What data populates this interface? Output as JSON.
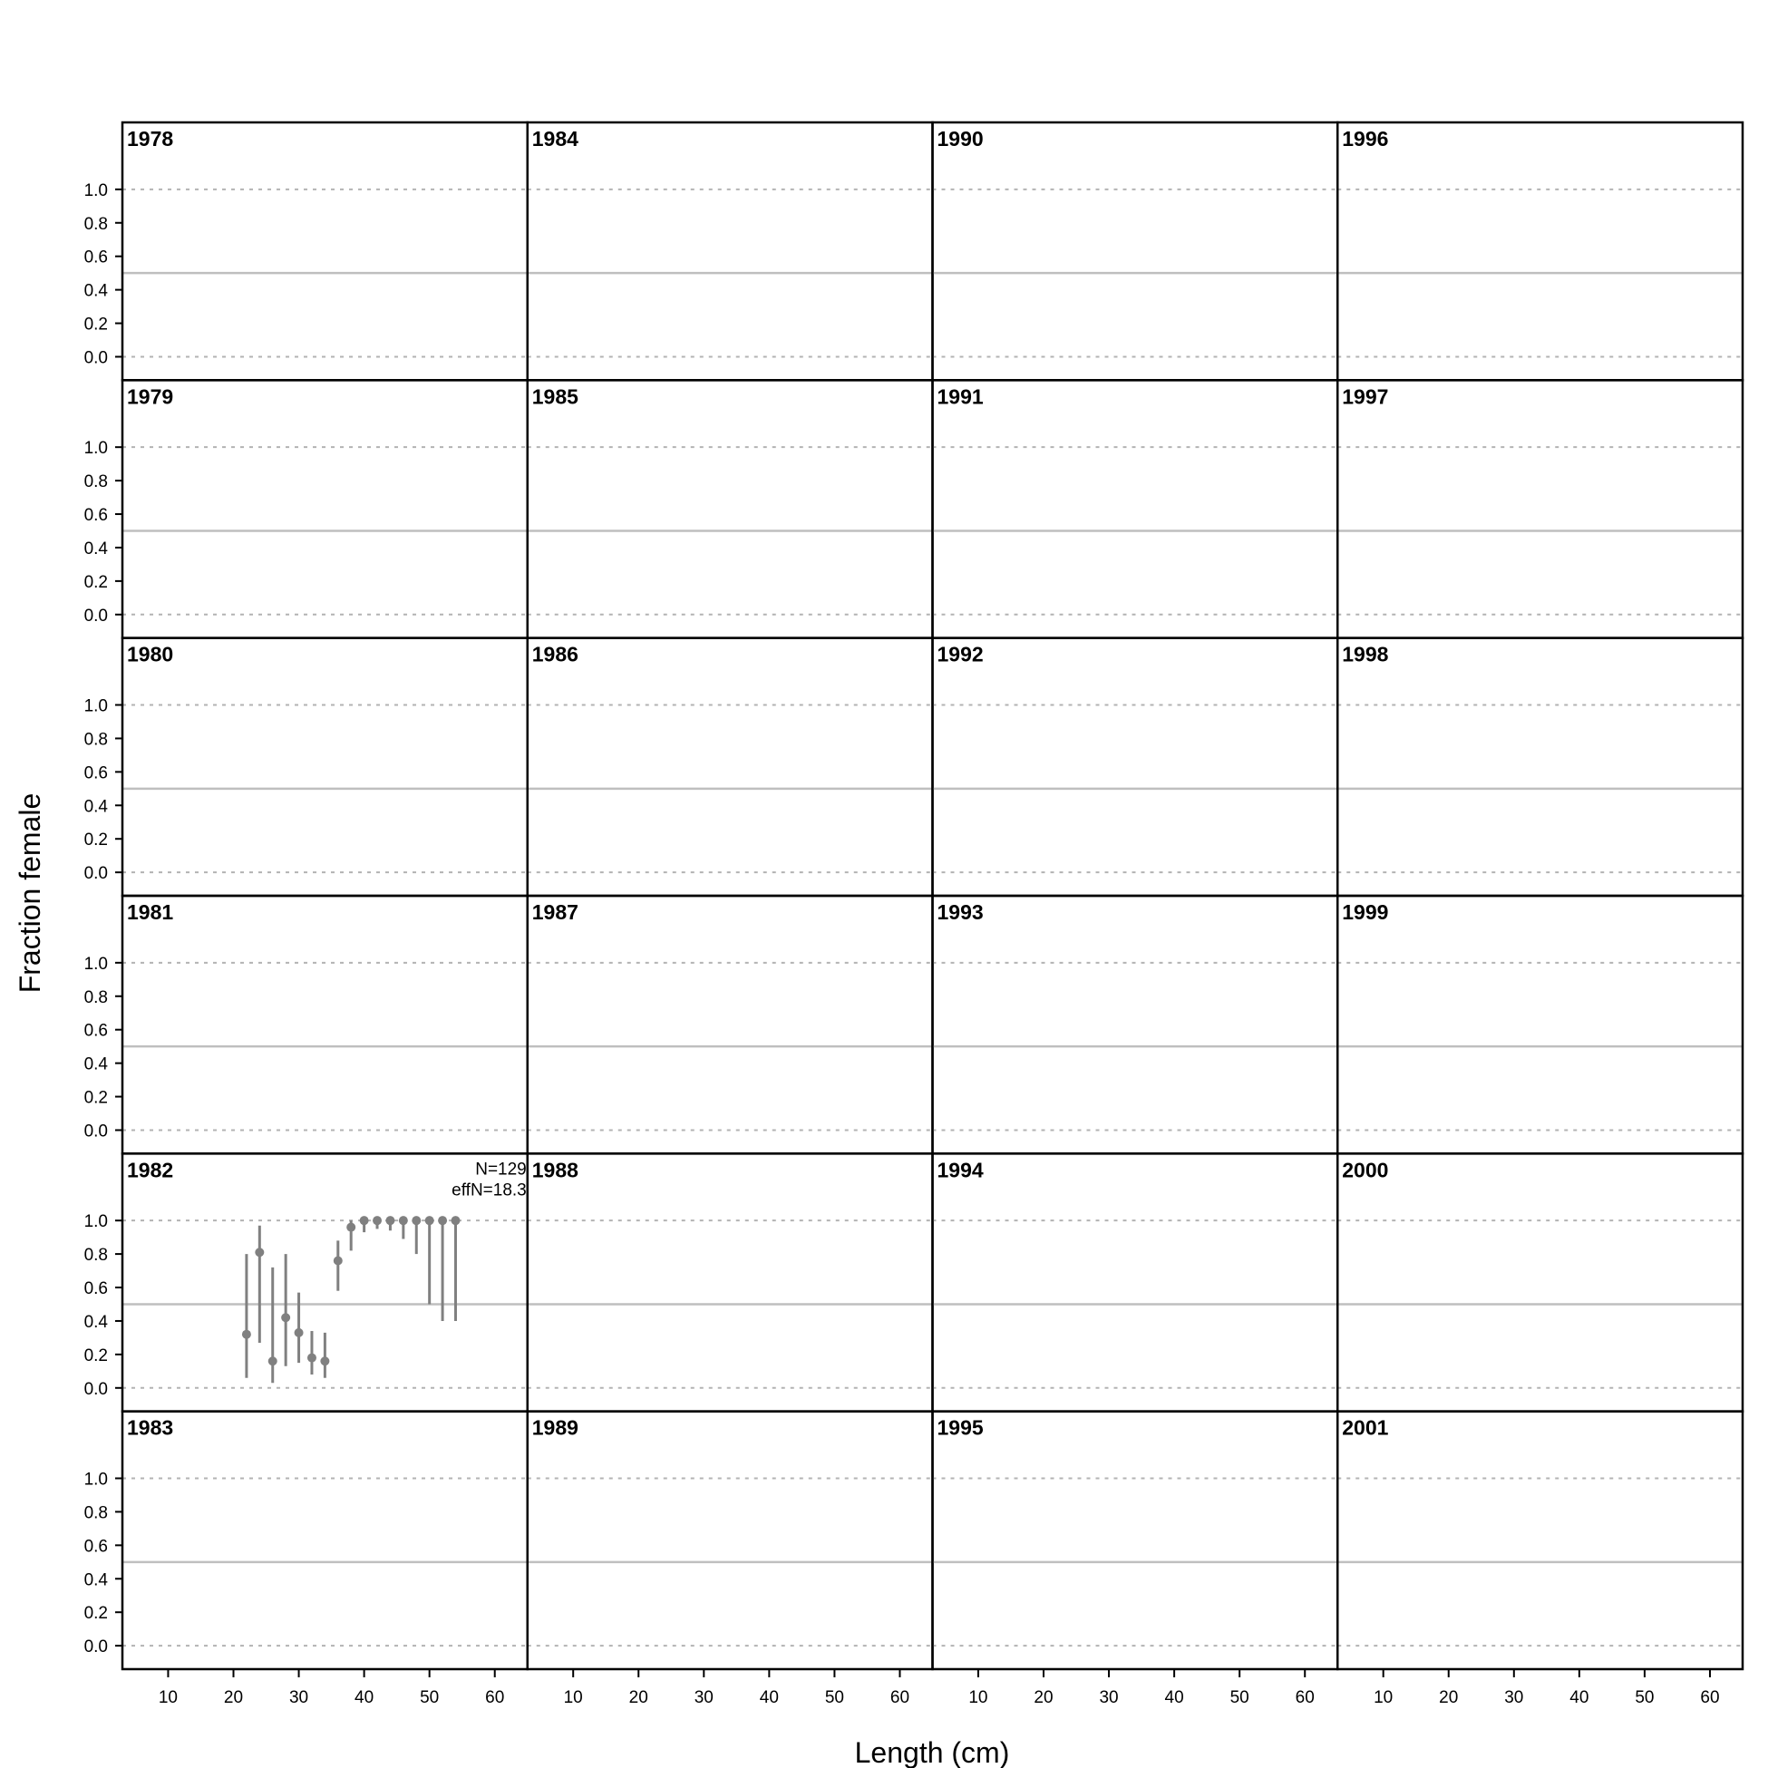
{
  "chart_data": {
    "type": "scatter",
    "xlabel": "Length (cm)",
    "ylabel": "Fraction female",
    "xlim": [
      3,
      65
    ],
    "ylim": [
      -0.14,
      1.4
    ],
    "x_ticks": [
      10,
      20,
      30,
      40,
      50,
      60
    ],
    "y_ticks": [
      0.0,
      0.2,
      0.4,
      0.6,
      0.8,
      1.0
    ],
    "y_tick_labels": [
      "0.0",
      "0.2",
      "0.4",
      "0.6",
      "0.8",
      "1.0"
    ],
    "reference_lines": {
      "dotted": [
        0,
        1
      ],
      "solid": 0.5
    },
    "point_color": "#808080",
    "layout": {
      "columns": 4,
      "rows": 6
    },
    "panels": [
      {
        "year": "1978",
        "points": []
      },
      {
        "year": "1979",
        "points": []
      },
      {
        "year": "1980",
        "points": []
      },
      {
        "year": "1981",
        "points": []
      },
      {
        "year": "1982",
        "N_label": "N=129",
        "effN_label": "effN=18.3",
        "points": [
          {
            "x": 22,
            "y": 0.32,
            "lo": 0.06,
            "hi": 0.8
          },
          {
            "x": 24,
            "y": 0.81,
            "lo": 0.27,
            "hi": 0.97
          },
          {
            "x": 26,
            "y": 0.16,
            "lo": 0.03,
            "hi": 0.72
          },
          {
            "x": 28,
            "y": 0.42,
            "lo": 0.13,
            "hi": 0.8
          },
          {
            "x": 30,
            "y": 0.33,
            "lo": 0.15,
            "hi": 0.57
          },
          {
            "x": 32,
            "y": 0.18,
            "lo": 0.08,
            "hi": 0.34
          },
          {
            "x": 34,
            "y": 0.16,
            "lo": 0.06,
            "hi": 0.33
          },
          {
            "x": 36,
            "y": 0.76,
            "lo": 0.58,
            "hi": 0.88
          },
          {
            "x": 38,
            "y": 0.96,
            "lo": 0.82,
            "hi": 1.0
          },
          {
            "x": 40,
            "y": 1.0,
            "lo": 0.93,
            "hi": 1.0
          },
          {
            "x": 42,
            "y": 1.0,
            "lo": 0.95,
            "hi": 1.0
          },
          {
            "x": 44,
            "y": 1.0,
            "lo": 0.94,
            "hi": 1.0
          },
          {
            "x": 46,
            "y": 1.0,
            "lo": 0.89,
            "hi": 1.0
          },
          {
            "x": 48,
            "y": 1.0,
            "lo": 0.8,
            "hi": 1.0
          },
          {
            "x": 50,
            "y": 1.0,
            "lo": 0.5,
            "hi": 1.0
          },
          {
            "x": 52,
            "y": 1.0,
            "lo": 0.4,
            "hi": 1.0
          },
          {
            "x": 54,
            "y": 1.0,
            "lo": 0.4,
            "hi": 1.0
          }
        ]
      },
      {
        "year": "1983",
        "points": []
      },
      {
        "year": "1984",
        "points": []
      },
      {
        "year": "1985",
        "points": []
      },
      {
        "year": "1986",
        "points": []
      },
      {
        "year": "1987",
        "points": []
      },
      {
        "year": "1988",
        "points": []
      },
      {
        "year": "1989",
        "points": []
      },
      {
        "year": "1990",
        "points": []
      },
      {
        "year": "1991",
        "points": []
      },
      {
        "year": "1992",
        "points": []
      },
      {
        "year": "1993",
        "points": []
      },
      {
        "year": "1994",
        "points": []
      },
      {
        "year": "1995",
        "points": []
      },
      {
        "year": "1996",
        "points": []
      },
      {
        "year": "1997",
        "points": []
      },
      {
        "year": "1998",
        "points": []
      },
      {
        "year": "1999",
        "points": []
      },
      {
        "year": "2000",
        "points": []
      },
      {
        "year": "2001",
        "points": []
      }
    ]
  }
}
